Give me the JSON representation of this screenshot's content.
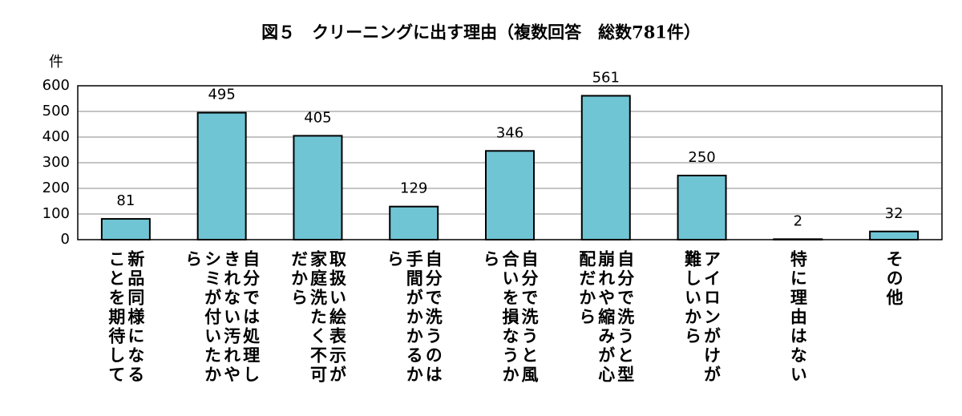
{
  "chart_data": {
    "type": "bar",
    "title": "図５　クリーニングに出す理由（複数回答　総数781件）",
    "y_label": "件",
    "categories": [
      "新品同様になることを期待して",
      "自分では処理しきれない汚れやシミが付いたから",
      "取扱い絵表示が家庭洗たく不可だから",
      "自分で洗うのは手間がかかるから",
      "自分で洗うと風合いを損なうから",
      "自分で洗うと型崩れや縮みが心配だから",
      "アイロンがけが難しいから",
      "特に理由はない",
      "その他"
    ],
    "values": [
      81,
      495,
      405,
      129,
      346,
      561,
      250,
      2,
      32
    ],
    "color": "#70c5d4",
    "ylim": [
      0,
      600
    ],
    "yticks": [
      0,
      100,
      200,
      300,
      400,
      500,
      600
    ],
    "grid": true
  }
}
